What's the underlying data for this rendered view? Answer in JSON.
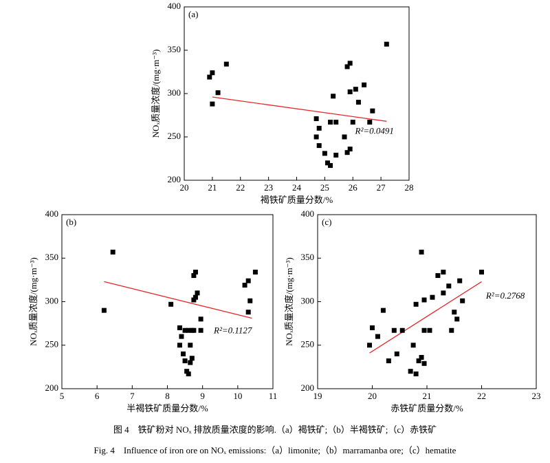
{
  "chart_data": [
    {
      "type": "scatter",
      "panel_label": "(a)",
      "xlabel": "褐铁矿质量分数/%",
      "ylabel": "NOₓ质量浓度/(mg·m⁻³)",
      "annotation": "R²=0.0491",
      "color": "#000000",
      "x": [
        20.9,
        21.0,
        21.0,
        21.2,
        21.5,
        24.7,
        24.7,
        24.8,
        24.8,
        25.0,
        25.1,
        25.2,
        25.2,
        25.3,
        25.4,
        25.4,
        25.7,
        25.8,
        25.8,
        25.9,
        25.9,
        25.9,
        26.0,
        26.1,
        26.2,
        26.4,
        26.6,
        26.7,
        27.2
      ],
      "values": [
        319,
        324,
        288,
        301,
        334,
        271,
        250,
        260,
        240,
        231,
        220,
        217,
        267,
        297,
        267,
        229,
        250,
        331,
        232,
        335,
        236,
        302,
        267,
        305,
        290,
        310,
        267,
        280,
        357
      ],
      "fit_line": {
        "x": [
          21.0,
          27.2
        ],
        "y": [
          296,
          268
        ],
        "color": "#e8262a"
      },
      "xlim": [
        20,
        28
      ],
      "xticks": [
        20,
        21,
        22,
        23,
        24,
        25,
        26,
        27,
        28
      ],
      "ylim": [
        200,
        400
      ],
      "yticks": [
        200,
        250,
        300,
        350,
        400
      ]
    },
    {
      "type": "scatter",
      "panel_label": "(b)",
      "xlabel": "半褐铁矿质量分数/%",
      "ylabel": "NOₓ质量浓度/(mg·m⁻³)",
      "annotation": "R²=0.1127",
      "color": "#000000",
      "x": [
        6.2,
        6.45,
        8.1,
        8.35,
        8.35,
        8.4,
        8.45,
        8.5,
        8.5,
        8.55,
        8.6,
        8.6,
        8.65,
        8.65,
        8.7,
        8.7,
        8.75,
        8.75,
        8.75,
        8.8,
        8.8,
        8.85,
        8.95,
        8.95,
        10.2,
        10.3,
        10.3,
        10.35,
        10.5
      ],
      "values": [
        290,
        357,
        297,
        270,
        250,
        260,
        240,
        232,
        267,
        220,
        267,
        217,
        250,
        230,
        235,
        267,
        302,
        267,
        330,
        334,
        305,
        310,
        267,
        280,
        319,
        324,
        288,
        301,
        334
      ],
      "fit_line": {
        "x": [
          6.2,
          10.4
        ],
        "y": [
          323,
          281
        ],
        "color": "#e8262a"
      },
      "xlim": [
        5,
        11
      ],
      "xticks": [
        5,
        6,
        7,
        8,
        9,
        10,
        11
      ],
      "ylim": [
        200,
        400
      ],
      "yticks": [
        200,
        250,
        300,
        350,
        400
      ]
    },
    {
      "type": "scatter",
      "panel_label": "(c)",
      "xlabel": "赤铁矿质量分数/%",
      "ylabel": "NOₓ质量浓度/(mg·m⁻³)",
      "annotation": "R²=0.2768",
      "color": "#000000",
      "x": [
        19.95,
        20.0,
        20.1,
        20.2,
        20.3,
        20.4,
        20.45,
        20.55,
        20.7,
        20.75,
        20.8,
        20.8,
        20.85,
        20.9,
        20.9,
        20.95,
        20.95,
        20.95,
        21.05,
        21.1,
        21.2,
        21.3,
        21.3,
        21.4,
        21.45,
        21.5,
        21.55,
        21.6,
        21.65,
        22.0
      ],
      "values": [
        250,
        270,
        260,
        290,
        232,
        267,
        240,
        267,
        220,
        250,
        217,
        297,
        232,
        236,
        357,
        229,
        267,
        302,
        267,
        305,
        330,
        334,
        310,
        318,
        267,
        288,
        280,
        324,
        301,
        334
      ],
      "fit_line": {
        "x": [
          19.95,
          22.0
        ],
        "y": [
          241,
          323
        ],
        "color": "#e8262a"
      },
      "xlim": [
        19,
        23
      ],
      "xticks": [
        19,
        20,
        21,
        22,
        23
      ],
      "ylim": [
        200,
        400
      ],
      "yticks": [
        200,
        250,
        300,
        350,
        400
      ]
    }
  ],
  "figure_caption": {
    "cn": "图 4　铁矿粉对 NOₓ 排放质量浓度的影响.（a）褐铁矿;（b）半褐铁矿;（c）赤铁矿",
    "en": "Fig. 4　Influence of iron ore on NOₓ emissions:（a）limonite;（b）marramanba ore;（c）hematite"
  }
}
